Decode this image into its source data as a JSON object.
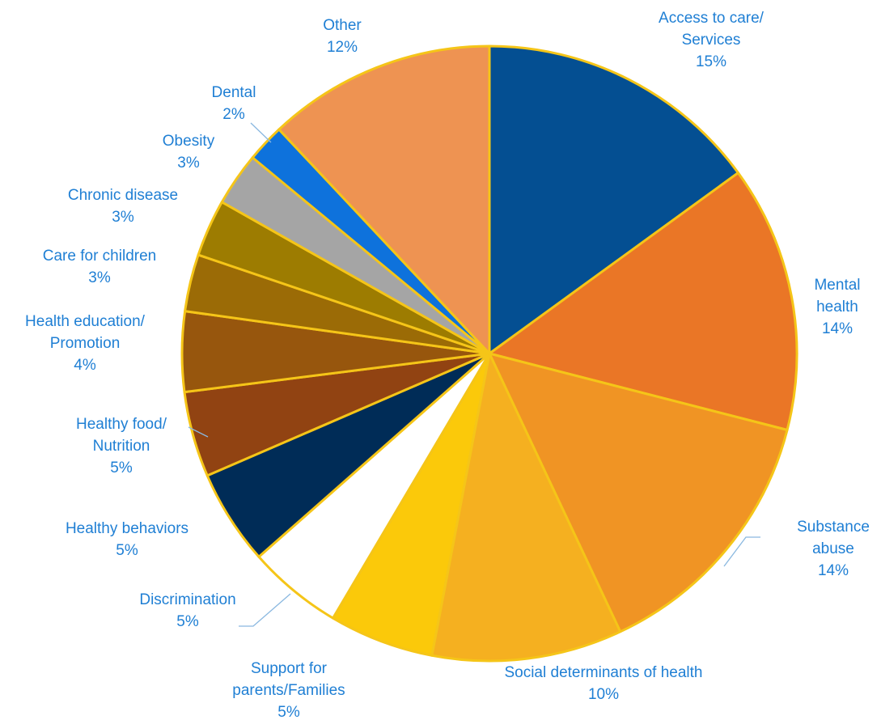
{
  "chart_data": {
    "type": "pie",
    "title": "",
    "slices": [
      {
        "label_lines": [
          "Access to care/",
          "Services"
        ],
        "value_label": "15%",
        "value": 15,
        "color": "#044f92"
      },
      {
        "label_lines": [
          "Mental",
          "health"
        ],
        "value_label": "14%",
        "value": 14,
        "color": "#ea7626"
      },
      {
        "label_lines": [
          "Substance",
          "abuse"
        ],
        "value_label": "14%",
        "value": 14,
        "color": "#f09424"
      },
      {
        "label_lines": [
          "Social determinants of health"
        ],
        "value_label": "10%",
        "value": 10,
        "color": "#f5b020"
      },
      {
        "label_lines": [
          "Support for",
          "parents/Families"
        ],
        "value_label": "5%",
        "value": 5.5,
        "color": "#fbc90a"
      },
      {
        "label_lines": [
          "Discrimination"
        ],
        "value_label": "5%",
        "value": 5,
        "color": "#ffffff"
      },
      {
        "label_lines": [
          "Healthy behaviors"
        ],
        "value_label": "5%",
        "value": 5,
        "color": "#002c57"
      },
      {
        "label_lines": [
          "Healthy food/",
          "Nutrition"
        ],
        "value_label": "5%",
        "value": 4.5,
        "color": "#914312"
      },
      {
        "label_lines": [
          "Health education/",
          "Promotion"
        ],
        "value_label": "4%",
        "value": 4.2,
        "color": "#97560d"
      },
      {
        "label_lines": [
          "Care for children"
        ],
        "value_label": "3%",
        "value": 3,
        "color": "#9b6b06"
      },
      {
        "label_lines": [
          "Chronic disease"
        ],
        "value_label": "3%",
        "value": 3,
        "color": "#9d7c01"
      },
      {
        "label_lines": [
          "Obesity"
        ],
        "value_label": "3%",
        "value": 2.8,
        "color": "#a5a5a5"
      },
      {
        "label_lines": [
          "Dental"
        ],
        "value_label": "2%",
        "value": 2,
        "color": "#0e72dc"
      },
      {
        "label_lines": [
          "Other"
        ],
        "value_label": "12%",
        "value": 12,
        "color": "#ee9352"
      }
    ],
    "start": "12 o'clock",
    "direction": "clockwise",
    "legend": "none",
    "label_color": "#1f7fd4",
    "slice_border_color": "#f5c518"
  }
}
